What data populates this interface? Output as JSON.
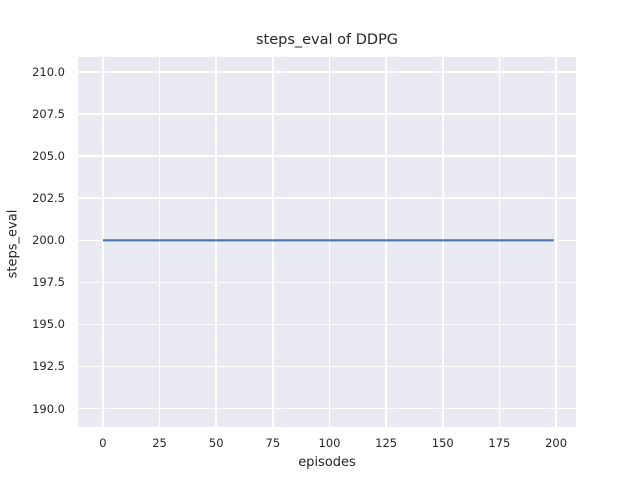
{
  "chart_data": {
    "type": "line",
    "title": "steps_eval of DDPG",
    "xlabel": "episodes",
    "ylabel": "steps_eval",
    "xlim": [
      -11.0,
      208.8
    ],
    "ylim": [
      188.9,
      210.9
    ],
    "xticks": [
      0,
      25,
      50,
      75,
      100,
      125,
      150,
      175,
      200
    ],
    "xtick_labels": [
      "0",
      "25",
      "50",
      "75",
      "100",
      "125",
      "150",
      "175",
      "200"
    ],
    "yticks": [
      190.0,
      192.5,
      195.0,
      197.5,
      200.0,
      202.5,
      205.0,
      207.5,
      210.0
    ],
    "ytick_labels": [
      "190.0",
      "192.5",
      "195.0",
      "197.5",
      "200.0",
      "202.5",
      "205.0",
      "207.5",
      "210.0"
    ],
    "grid": true,
    "legend_position": "none",
    "series": [
      {
        "name": "steps_eval",
        "color": "#4c72b0",
        "x": [
          0,
          199
        ],
        "y": [
          200.0,
          200.0
        ]
      }
    ],
    "style": {
      "figure_background": "#ffffff",
      "axes_background": "#eaeaf2",
      "grid_color": "#ffffff",
      "text_color": "#262626",
      "line_width": 2.2
    }
  }
}
